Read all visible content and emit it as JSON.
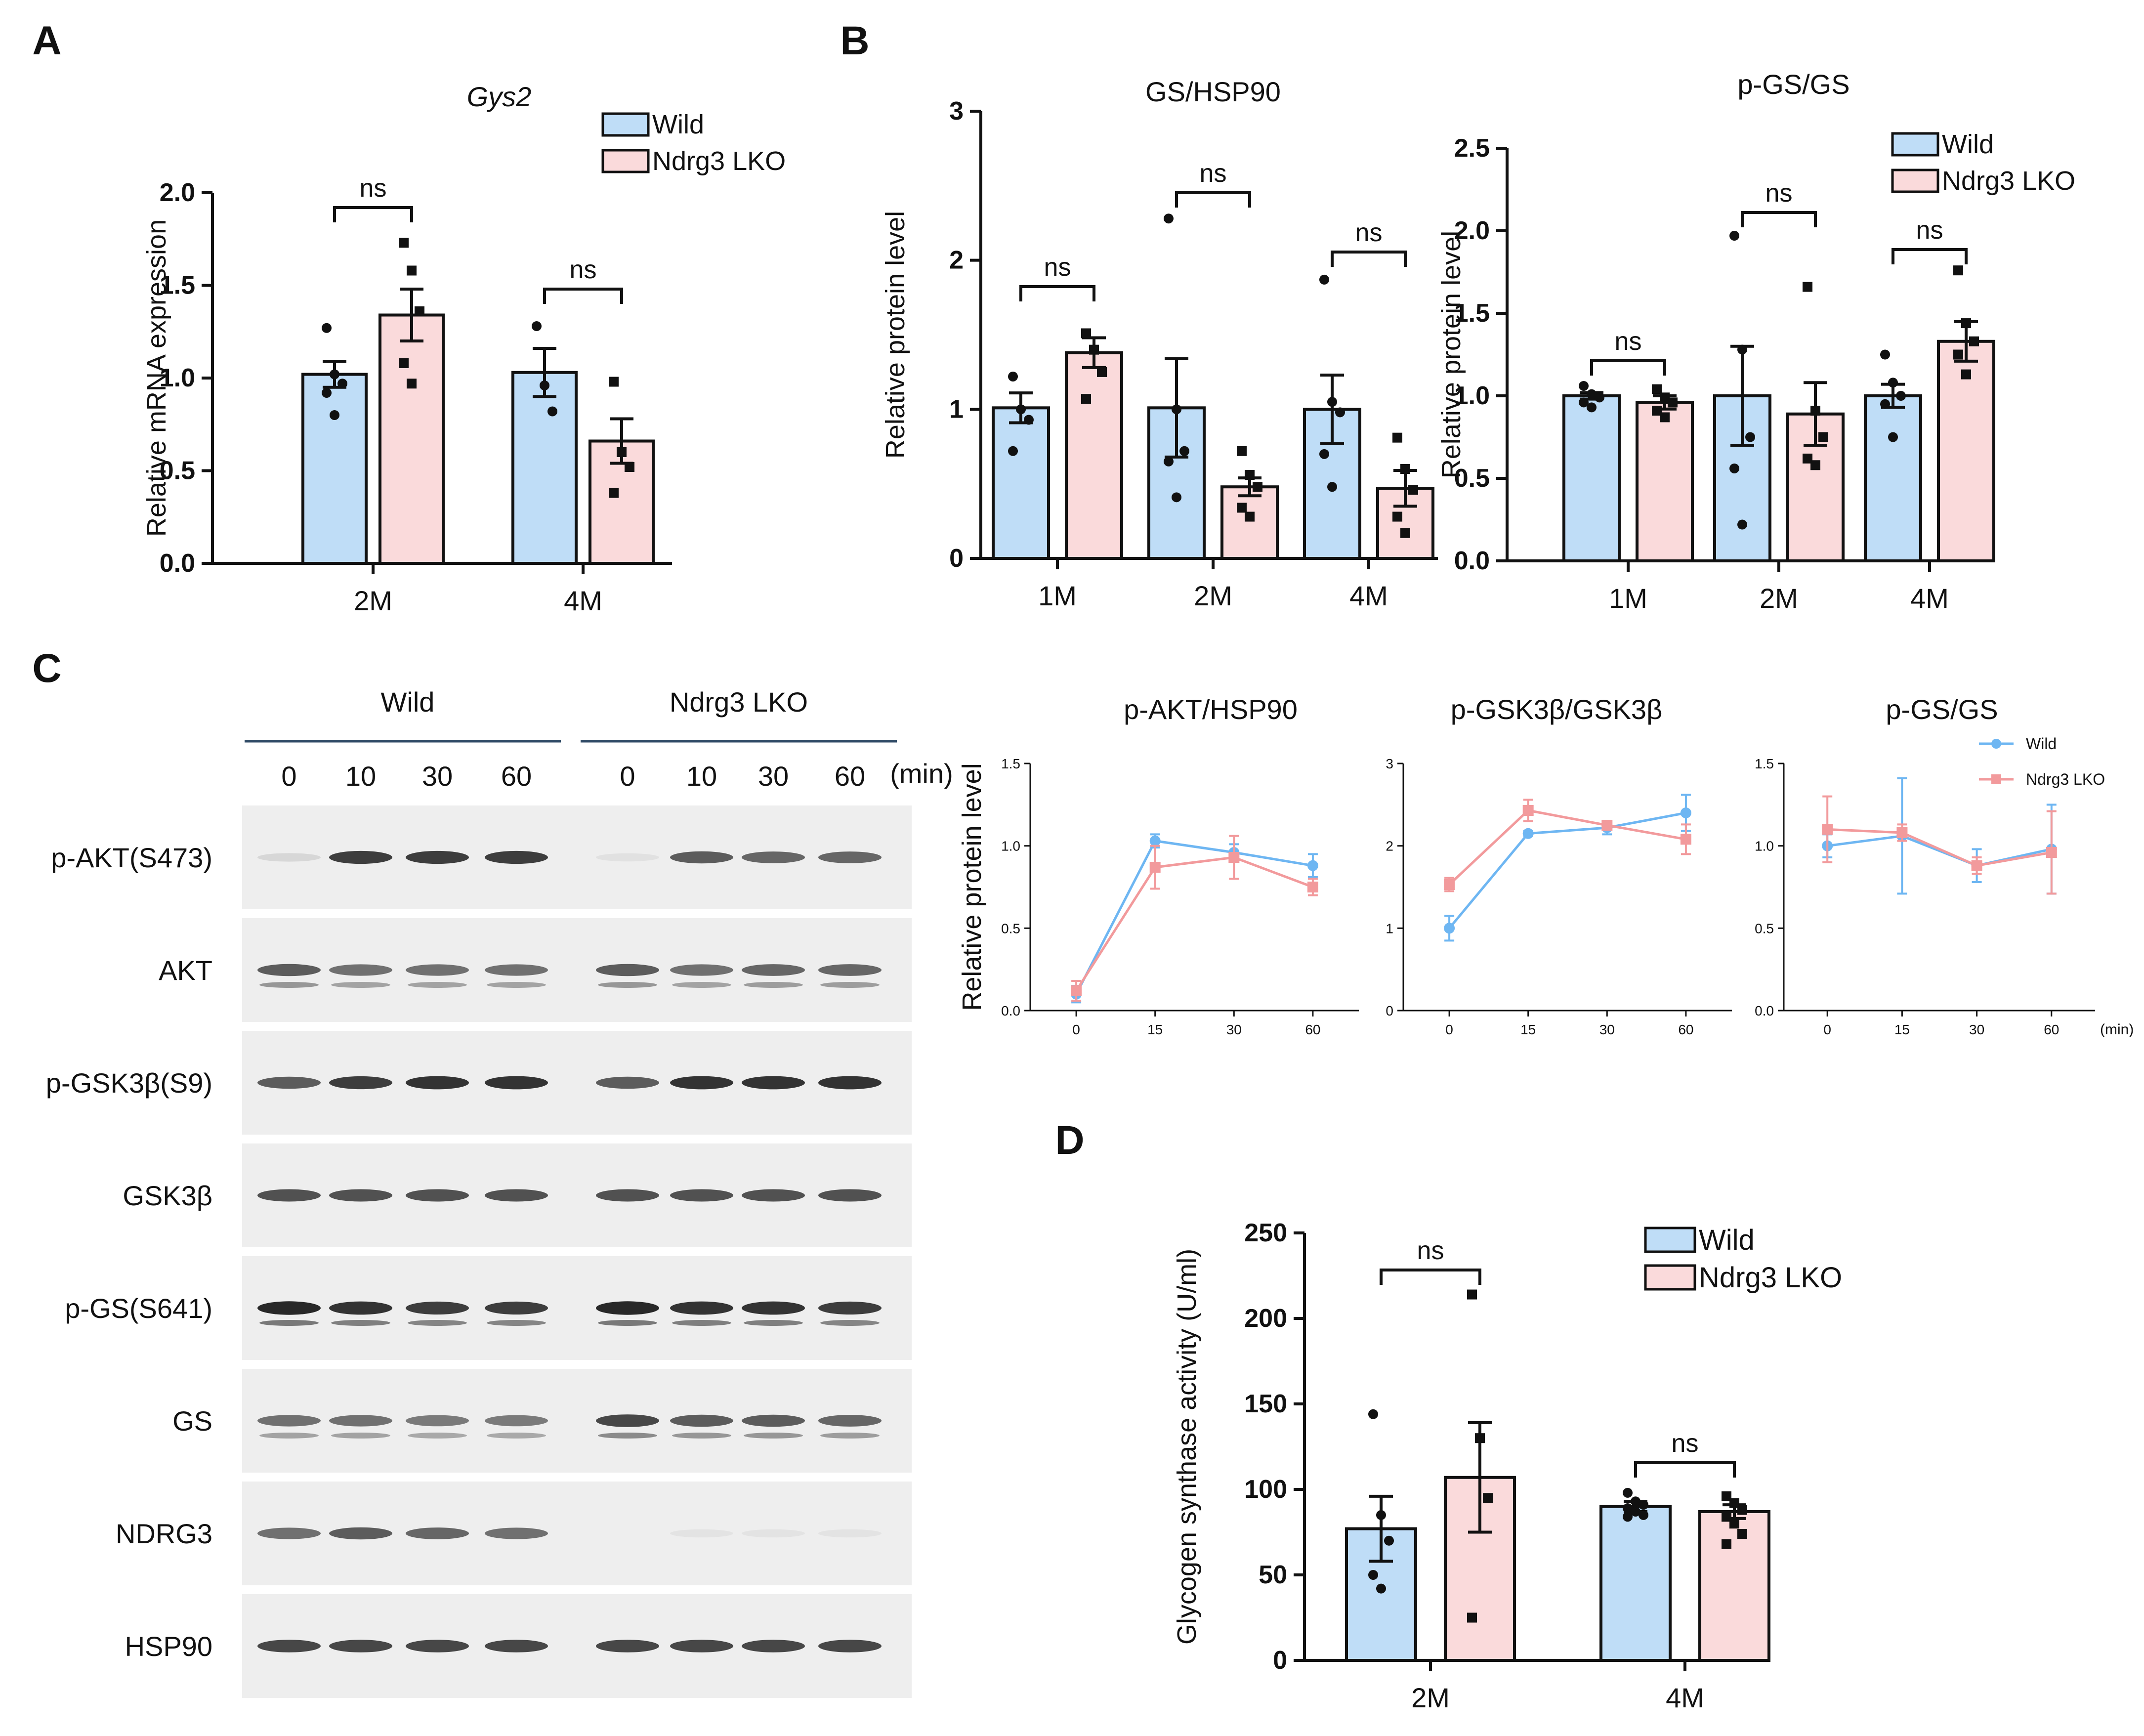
{
  "colors": {
    "wild": "#BFDDF7",
    "lko": "#FADADB",
    "wild_line": "#6EB6F2",
    "lko_line": "#F29A9C",
    "axis": "#111111"
  },
  "panel_letters": [
    "A",
    "B",
    "C",
    "D"
  ],
  "legend": {
    "wild": "Wild",
    "lko": "Ndrg3 LKO"
  },
  "chart_data": [
    {
      "panel": "A",
      "type": "bar",
      "title": "Gys2",
      "ylabel": "Relative mRNA expression",
      "ylim": [
        0,
        2.0
      ],
      "yticks": [
        "0.0",
        "0.5",
        "1.0",
        "1.5",
        "2.0"
      ],
      "categories": [
        "2M",
        "4M"
      ],
      "series": [
        {
          "name": "Wild",
          "values": [
            1.02,
            1.03
          ],
          "sem": [
            0.07,
            0.13
          ]
        },
        {
          "name": "Ndrg3 LKO",
          "values": [
            1.34,
            0.66
          ],
          "sem": [
            0.14,
            0.12
          ]
        }
      ],
      "points": [
        [
          [
            1.27,
            1.02,
            0.97,
            0.92,
            0.8
          ],
          [
            1.73,
            1.58,
            1.36,
            1.08,
            0.97
          ]
        ],
        [
          [
            1.28,
            0.96,
            0.82
          ],
          [
            0.98,
            0.6,
            0.52,
            0.38
          ]
        ]
      ],
      "sig": [
        "ns",
        "ns"
      ],
      "legend": true
    },
    {
      "panel": "B",
      "type": "bar",
      "title": "GS/HSP90",
      "ylabel": "Relative protein level",
      "ylim": [
        0,
        3
      ],
      "yticks": [
        "0",
        "1",
        "2",
        "3"
      ],
      "categories": [
        "1M",
        "2M",
        "4M"
      ],
      "series": [
        {
          "name": "Wild",
          "values": [
            1.01,
            1.01,
            1.0
          ],
          "sem": [
            0.1,
            0.33,
            0.23
          ]
        },
        {
          "name": "Ndrg3 LKO",
          "values": [
            1.38,
            0.48,
            0.47
          ],
          "sem": [
            0.1,
            0.06,
            0.12
          ]
        }
      ],
      "points": [
        [
          [
            1.22,
            1.0,
            0.93,
            0.72
          ],
          [
            1.51,
            1.4,
            1.25,
            1.07
          ]
        ],
        [
          [
            2.28,
            1.0,
            0.72,
            0.65,
            0.41
          ],
          [
            0.72,
            0.56,
            0.48,
            0.34,
            0.28
          ]
        ],
        [
          [
            1.87,
            1.05,
            0.98,
            0.7,
            0.48
          ],
          [
            0.81,
            0.6,
            0.46,
            0.28,
            0.17
          ]
        ]
      ],
      "sig": [
        "ns",
        "ns",
        "ns"
      ],
      "legend": false
    },
    {
      "panel": "B",
      "type": "bar",
      "title": "p-GS/GS",
      "ylabel": "Relative protein level",
      "ylim": [
        0,
        2.5
      ],
      "yticks": [
        "0.0",
        "0.5",
        "1.0",
        "1.5",
        "2.0",
        "2.5"
      ],
      "categories": [
        "1M",
        "2M",
        "4M"
      ],
      "series": [
        {
          "name": "Wild",
          "values": [
            1.0,
            1.0,
            1.0
          ],
          "sem": [
            0.02,
            0.3,
            0.07
          ]
        },
        {
          "name": "Ndrg3 LKO",
          "values": [
            0.96,
            0.89,
            1.33
          ],
          "sem": [
            0.04,
            0.19,
            0.12
          ]
        }
      ],
      "points": [
        [
          [
            1.06,
            1.01,
            0.99,
            0.96,
            0.93
          ],
          [
            1.04,
            0.99,
            0.96,
            0.91,
            0.87
          ]
        ],
        [
          [
            1.97,
            1.28,
            0.75,
            0.56,
            0.22
          ],
          [
            1.66,
            0.91,
            0.75,
            0.62,
            0.58
          ]
        ],
        [
          [
            1.25,
            1.08,
            1.0,
            0.95,
            0.75
          ],
          [
            1.76,
            1.44,
            1.33,
            1.25,
            1.13
          ]
        ]
      ],
      "sig": [
        "ns",
        "ns",
        "ns"
      ],
      "legend": true
    },
    {
      "panel": "C",
      "type": "line",
      "title": "p-AKT/HSP90",
      "ylabel": "Relative protein level",
      "ylim": [
        0,
        1.5
      ],
      "yticks": [
        "0.0",
        "0.5",
        "1.0",
        "1.5"
      ],
      "x": [
        "0",
        "15",
        "30",
        "60"
      ],
      "xunit": "",
      "series": [
        {
          "name": "Wild",
          "values": [
            0.1,
            1.03,
            0.96,
            0.88
          ],
          "err": [
            0.05,
            0.04,
            0.05,
            0.07
          ]
        },
        {
          "name": "Ndrg3 LKO",
          "values": [
            0.12,
            0.87,
            0.93,
            0.75
          ],
          "err": [
            0.06,
            0.13,
            0.13,
            0.05
          ]
        }
      ],
      "legend": false
    },
    {
      "panel": "C",
      "type": "line",
      "title": "p-GSK3β/GSK3β",
      "ylabel": "",
      "ylim": [
        0,
        3
      ],
      "yticks": [
        "0",
        "1",
        "2",
        "3"
      ],
      "x": [
        "0",
        "15",
        "30",
        "60"
      ],
      "xunit": "",
      "series": [
        {
          "name": "Wild",
          "values": [
            1.0,
            2.15,
            2.22,
            2.4
          ],
          "err": [
            0.15,
            0.03,
            0.08,
            0.22
          ]
        },
        {
          "name": "Ndrg3 LKO",
          "values": [
            1.53,
            2.43,
            2.25,
            2.08
          ],
          "err": [
            0.08,
            0.13,
            0.05,
            0.18
          ]
        }
      ],
      "legend": false
    },
    {
      "panel": "C",
      "type": "line",
      "title": "p-GS/GS",
      "ylabel": "",
      "ylim": [
        0,
        1.5
      ],
      "yticks": [
        "0.0",
        "0.5",
        "1.0",
        "1.5"
      ],
      "x": [
        "0",
        "15",
        "30",
        "60"
      ],
      "xunit": "(min)",
      "series": [
        {
          "name": "Wild",
          "values": [
            1.0,
            1.06,
            0.88,
            0.98
          ],
          "err": [
            0.07,
            0.35,
            0.1,
            0.27
          ]
        },
        {
          "name": "Ndrg3 LKO",
          "values": [
            1.1,
            1.08,
            0.88,
            0.96
          ],
          "err": [
            0.2,
            0.05,
            0.05,
            0.25
          ]
        }
      ],
      "legend": true
    },
    {
      "panel": "D",
      "type": "bar",
      "title": "",
      "ylabel": "Glycogen synthase activity (U/ml)",
      "ylim": [
        0,
        250
      ],
      "yticks": [
        "0",
        "50",
        "100",
        "150",
        "200",
        "250"
      ],
      "categories": [
        "2M",
        "4M"
      ],
      "series": [
        {
          "name": "Wild",
          "values": [
            77,
            90
          ],
          "sem": [
            19,
            3
          ]
        },
        {
          "name": "Ndrg3 LKO",
          "values": [
            107,
            87
          ],
          "sem": [
            32,
            4
          ]
        }
      ],
      "points": [
        [
          [
            144,
            85,
            70,
            50,
            42
          ],
          [
            214,
            130,
            95,
            25
          ]
        ],
        [
          [
            98,
            93,
            91,
            89,
            87,
            85,
            84
          ],
          [
            96,
            92,
            88,
            84,
            80,
            74,
            68
          ]
        ]
      ],
      "sig": [
        "ns",
        "ns"
      ],
      "legend": true
    }
  ],
  "blot": {
    "groups": [
      "Wild",
      "Ndrg3 LKO"
    ],
    "times": [
      "0",
      "10",
      "30",
      "60",
      "0",
      "10",
      "30",
      "60"
    ],
    "time_unit": "(min)",
    "rows": [
      {
        "label": "p-AKT(S473)",
        "int": [
          0.1,
          0.85,
          0.85,
          0.85,
          0.05,
          0.7,
          0.65,
          0.65
        ],
        "double": false
      },
      {
        "label": "AKT",
        "int": [
          0.7,
          0.6,
          0.6,
          0.6,
          0.7,
          0.6,
          0.65,
          0.65
        ],
        "double": true
      },
      {
        "label": "p-GSK3β(S9)",
        "int": [
          0.7,
          0.85,
          0.9,
          0.9,
          0.7,
          0.9,
          0.9,
          0.9
        ],
        "double": false
      },
      {
        "label": "GSK3β",
        "int": [
          0.75,
          0.75,
          0.75,
          0.75,
          0.75,
          0.75,
          0.75,
          0.75
        ],
        "double": false
      },
      {
        "label": "p-GS(S641)",
        "int": [
          0.95,
          0.9,
          0.85,
          0.85,
          0.95,
          0.9,
          0.9,
          0.85
        ],
        "double": true
      },
      {
        "label": "GS",
        "int": [
          0.6,
          0.6,
          0.55,
          0.55,
          0.8,
          0.7,
          0.7,
          0.65
        ],
        "double": true
      },
      {
        "label": "NDRG3",
        "int": [
          0.6,
          0.7,
          0.65,
          0.6,
          0.0,
          0.04,
          0.04,
          0.04
        ],
        "double": false
      },
      {
        "label": "HSP90",
        "int": [
          0.8,
          0.8,
          0.8,
          0.8,
          0.8,
          0.8,
          0.8,
          0.8
        ],
        "double": false
      }
    ]
  }
}
